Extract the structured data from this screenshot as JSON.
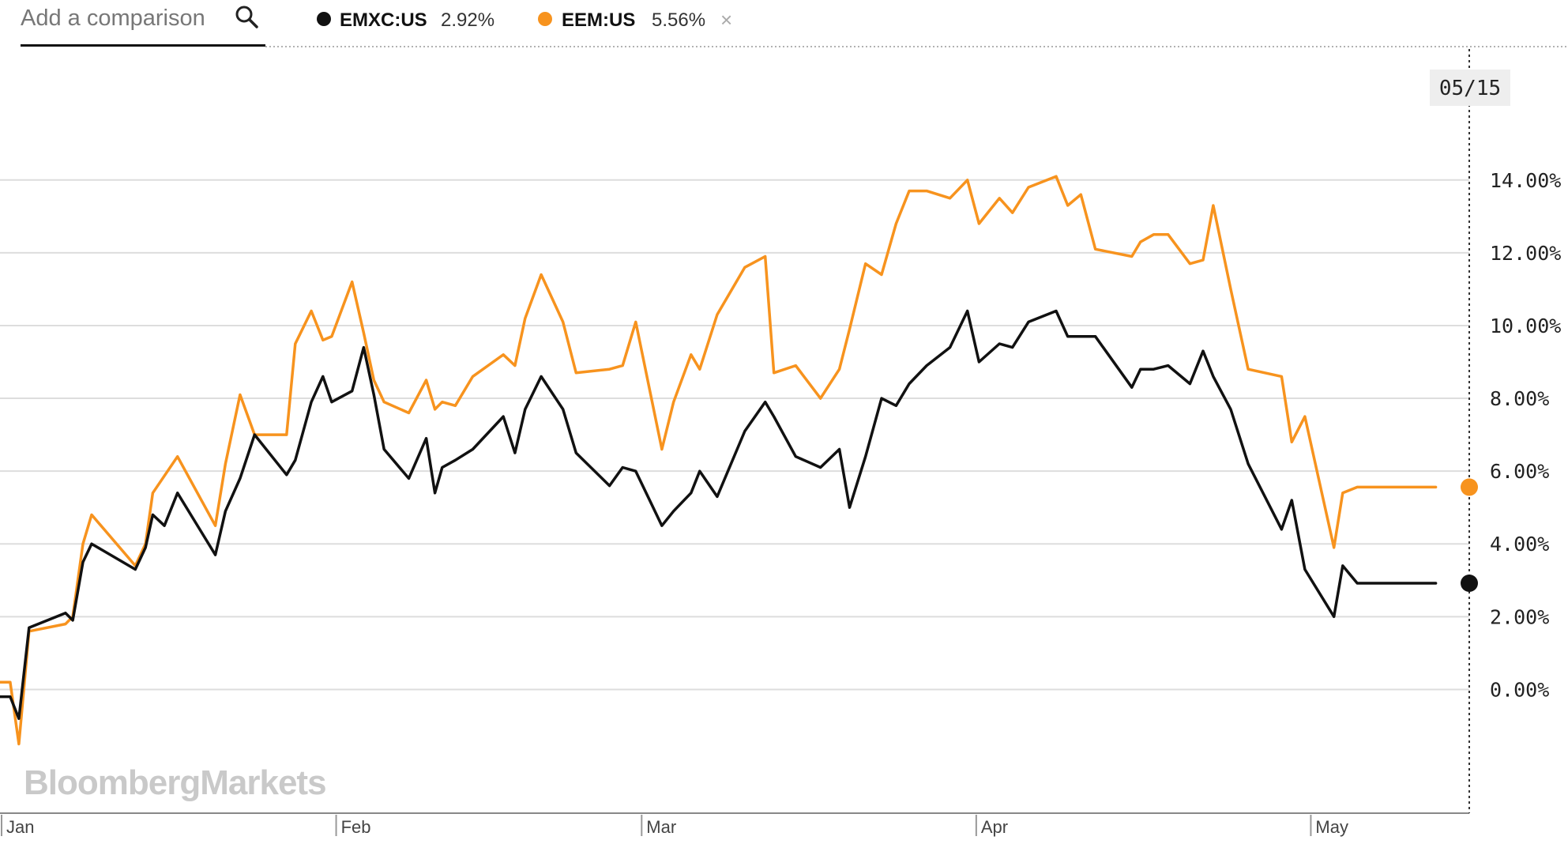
{
  "header": {
    "comparison_placeholder": "Add a comparison",
    "remove_symbol": "×"
  },
  "hover_date": "05/15",
  "watermark": "BloombergMarkets",
  "colors": {
    "emxc": "#111111",
    "eem": "#f7931e",
    "grid": "#dddddd",
    "axis": "#888888"
  },
  "icons": {
    "search": "search-icon",
    "close": "close-icon"
  },
  "chart_data": {
    "type": "line",
    "title": "",
    "xlabel": "",
    "ylabel": "",
    "ylim": [
      -3.4,
      17.6
    ],
    "y_ticks": [
      0,
      2,
      4,
      6,
      8,
      10,
      12,
      14
    ],
    "y_tick_labels": [
      "0.00%",
      "2.00%",
      "4.00%",
      "6.00%",
      "8.00%",
      "10.00%",
      "12.00%",
      "14.00%"
    ],
    "x_range": [
      0,
      101
    ],
    "months": [
      {
        "label": "Jan",
        "x": 0
      },
      {
        "label": "Feb",
        "x": 23
      },
      {
        "label": "Mar",
        "x": 44
      },
      {
        "label": "Apr",
        "x": 67
      },
      {
        "label": "May",
        "x": 90
      }
    ],
    "grid": true,
    "legend_position": "top",
    "series": [
      {
        "name": "EMXC:US",
        "value_label": "2.92%",
        "color": "#111111",
        "x": [
          0,
          0.7,
          1.3,
          2,
          4.5,
          5,
          5.7,
          6.3,
          9.3,
          10,
          10.5,
          11.3,
          12.2,
          14.8,
          15.5,
          16.5,
          17.5,
          19.7,
          20.3,
          21.4,
          22.2,
          22.8,
          24.2,
          25,
          25.7,
          26.4,
          28.1,
          29.3,
          29.9,
          30.4,
          31.3,
          32.5,
          34.6,
          35.4,
          36.1,
          37.2,
          38.7,
          39.6,
          41.9,
          42.8,
          43.7,
          45.5,
          46.3,
          47.5,
          48.1,
          49.3,
          51.2,
          52.6,
          53.2,
          54.7,
          56.4,
          57.7,
          58.4,
          59.5,
          60.6,
          61.6,
          62.5,
          63.7,
          65.3,
          66.5,
          67.3,
          68.7,
          69.6,
          70.7,
          72.6,
          73.4,
          74.3,
          75.3,
          77.8,
          78.4,
          79.3,
          80.3,
          81.8,
          82.7,
          83.4,
          84.6,
          85.8,
          88.1,
          88.8,
          89.7,
          91.7,
          92.3,
          93.3,
          94.3,
          95.1,
          95.7,
          97.4,
          98.1,
          98.7
        ],
        "values": [
          -0.2,
          -0.2,
          -0.8,
          1.7,
          2.1,
          1.9,
          3.5,
          4.0,
          3.3,
          3.9,
          4.8,
          4.5,
          5.4,
          3.7,
          4.9,
          5.8,
          7.0,
          5.9,
          6.3,
          7.9,
          8.6,
          7.9,
          8.2,
          9.4,
          8.1,
          6.6,
          5.8,
          6.9,
          5.4,
          6.1,
          6.3,
          6.6,
          7.5,
          6.5,
          7.7,
          8.6,
          7.7,
          6.5,
          5.6,
          6.1,
          6.0,
          4.5,
          4.9,
          5.4,
          6.0,
          5.3,
          7.1,
          7.9,
          7.5,
          6.4,
          6.1,
          6.6,
          5.0,
          6.4,
          8.0,
          7.8,
          8.4,
          8.9,
          9.4,
          10.4,
          9.0,
          9.5,
          9.4,
          10.1,
          10.4,
          9.7,
          9.7,
          9.7,
          8.3,
          8.8,
          8.8,
          8.9,
          8.4,
          9.3,
          8.6,
          7.7,
          6.2,
          4.4,
          5.2,
          3.3,
          2.0,
          3.4,
          2.92,
          2.92,
          2.92,
          2.92,
          2.92,
          2.92,
          2.92
        ]
      },
      {
        "name": "EEM:US",
        "value_label": "5.56%",
        "color": "#f7931e",
        "x": [
          0,
          0.7,
          1.3,
          2,
          4.5,
          5,
          5.7,
          6.3,
          9.3,
          10,
          10.5,
          12.2,
          14.8,
          15.5,
          16.5,
          17.5,
          19.7,
          20.3,
          21.4,
          22.2,
          22.8,
          24.2,
          25,
          25.7,
          26.4,
          28.1,
          29.3,
          29.9,
          30.4,
          31.3,
          32.5,
          34.6,
          35.4,
          36.1,
          37.2,
          38.7,
          39.6,
          41.9,
          42.8,
          43.7,
          45.5,
          46.3,
          47.5,
          48.1,
          49.3,
          51.2,
          52.6,
          53.2,
          54.7,
          56.4,
          57.7,
          58.4,
          59.5,
          60.6,
          61.6,
          62.5,
          63.7,
          65.3,
          66.5,
          67.3,
          68.7,
          69.6,
          70.7,
          72.6,
          73.4,
          74.3,
          75.3,
          77.8,
          78.4,
          79.3,
          80.3,
          81.8,
          82.7,
          83.4,
          84.6,
          85.8,
          88.1,
          88.8,
          89.7,
          91.7,
          92.3,
          93.3,
          94.3,
          95.1,
          95.7,
          97.4,
          98.1,
          98.7
        ],
        "values": [
          0.2,
          0.2,
          -1.5,
          1.6,
          1.8,
          2.0,
          4.0,
          4.8,
          3.4,
          4.0,
          5.4,
          6.4,
          4.5,
          6.2,
          8.1,
          7.0,
          7.0,
          9.5,
          10.4,
          9.6,
          9.7,
          11.2,
          9.8,
          8.5,
          7.9,
          7.6,
          8.5,
          7.7,
          7.9,
          7.8,
          8.6,
          9.2,
          8.9,
          10.2,
          11.4,
          10.1,
          8.7,
          8.8,
          8.9,
          10.1,
          6.6,
          7.9,
          9.2,
          8.8,
          10.3,
          11.6,
          11.9,
          8.7,
          8.9,
          8.0,
          8.8,
          9.9,
          11.7,
          11.4,
          12.8,
          13.7,
          13.7,
          13.5,
          14.0,
          12.8,
          13.5,
          13.1,
          13.8,
          14.1,
          13.3,
          13.6,
          12.1,
          11.9,
          12.3,
          12.5,
          12.5,
          11.7,
          11.8,
          13.3,
          11.0,
          8.8,
          8.6,
          6.8,
          7.5,
          3.9,
          5.4,
          5.56,
          5.56,
          5.56,
          5.56,
          5.56,
          5.56,
          5.56
        ]
      }
    ]
  }
}
